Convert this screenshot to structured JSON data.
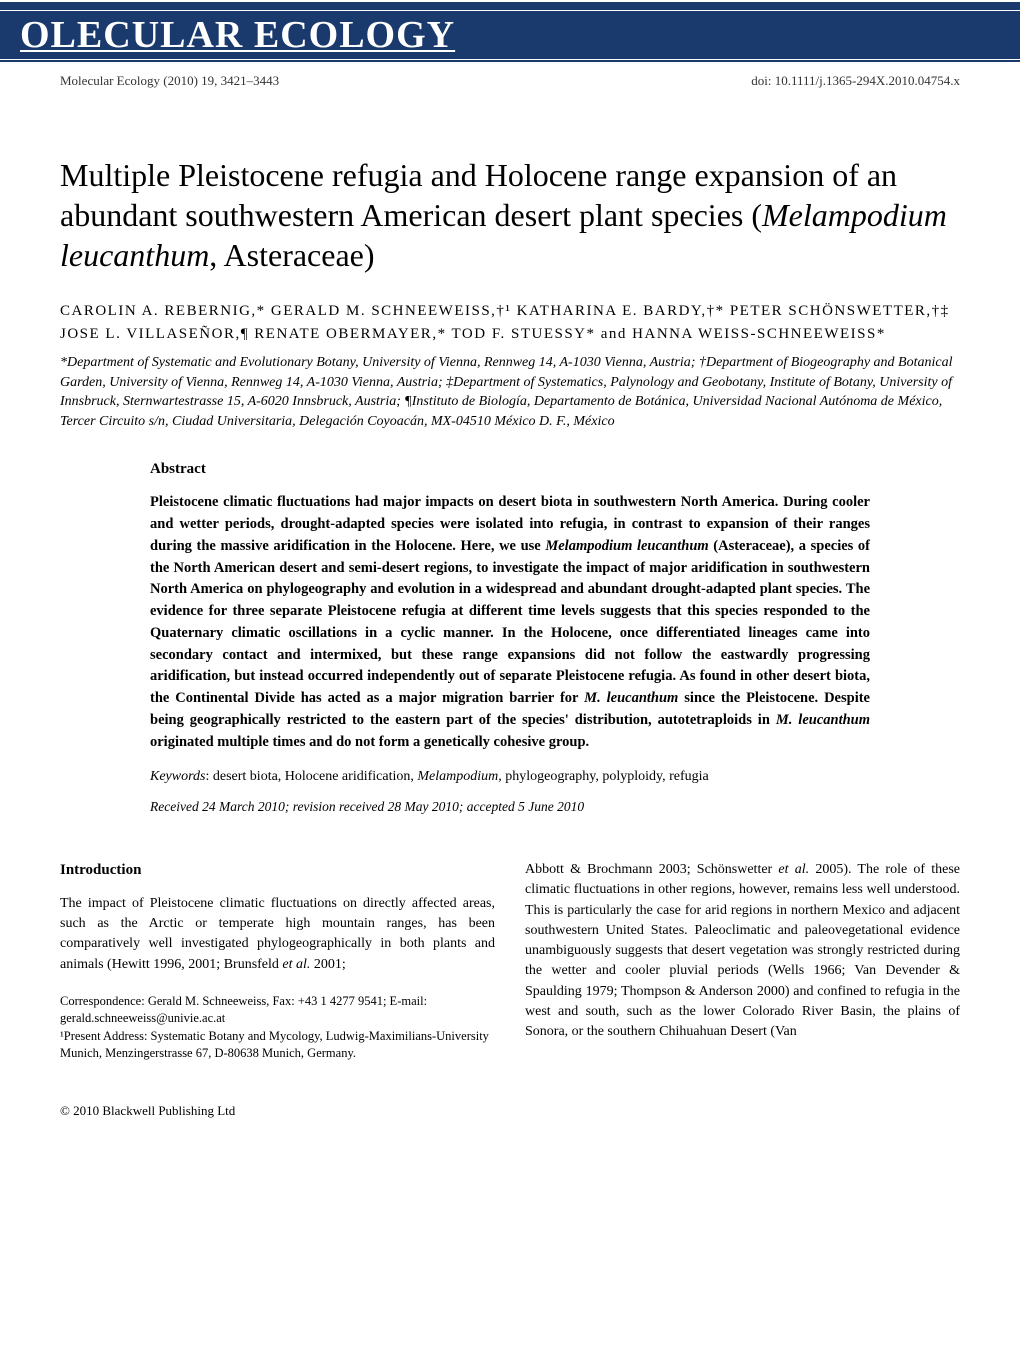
{
  "journal": {
    "banner_name": "OLECULAR ECOLOGY",
    "citation": "Molecular Ecology (2010) 19, 3421–3443",
    "doi": "doi: 10.1111/j.1365-294X.2010.04754.x"
  },
  "article": {
    "title_pre": "Multiple Pleistocene refugia and Holocene range expansion of an abundant southwestern American desert plant species (",
    "title_italic": "Melampodium leucanthum",
    "title_post": ", Asteraceae)",
    "authors": "CAROLIN A. REBERNIG,* GERALD M. SCHNEEWEISS,†¹ KATHARINA E. BARDY,†* PETER SCHÖNSWETTER,†‡ JOSE L. VILLASEÑOR,¶ RENATE OBERMAYER,* TOD F. STUESSY* and HANNA WEISS-SCHNEEWEISS*",
    "affiliations": "*Department of Systematic and Evolutionary Botany, University of Vienna, Rennweg 14, A-1030 Vienna, Austria; †Department of Biogeography and Botanical Garden, University of Vienna, Rennweg 14, A-1030 Vienna, Austria; ‡Department of Systematics, Palynology and Geobotany, Institute of Botany, University of Innsbruck, Sternwartestrasse 15, A-6020 Innsbruck, Austria; ¶Instituto de Biología, Departamento de Botánica, Universidad Nacional Autónoma de México, Tercer Circuito s/n, Ciudad Universitaria, Delegación Coyoacán, MX-04510 México D. F., México"
  },
  "abstract": {
    "heading": "Abstract",
    "body_1": "Pleistocene climatic fluctuations had major impacts on desert biota in southwestern North America. During cooler and wetter periods, drought-adapted species were isolated into refugia, in contrast to expansion of their ranges during the massive aridification in the Holocene. Here, we use ",
    "body_1_italic": "Melampodium leucanthum",
    "body_2": " (Asteraceae), a species of the North American desert and semi-desert regions, to investigate the impact of major aridification in southwestern North America on phylogeography and evolution in a widespread and abundant drought-adapted plant species. The evidence for three separate Pleistocene refugia at different time levels suggests that this species responded to the Quaternary climatic oscillations in a cyclic manner. In the Holocene, once differentiated lineages came into secondary contact and intermixed, but these range expansions did not follow the eastwardly progressing aridification, but instead occurred independently out of separate Pleistocene refugia. As found in other desert biota, the Continental Divide has acted as a major migration barrier for ",
    "body_2_italic": "M. leucanthum",
    "body_3": " since the Pleistocene. Despite being geographically restricted to the eastern part of the species' distribution, autotetraploids in ",
    "body_3_italic": "M. leucanthum",
    "body_4": " originated multiple times and do not form a genetically cohesive group.",
    "keywords_label": "Keywords",
    "keywords_text_1": ": desert biota, Holocene aridification, ",
    "keywords_italic": "Melampodium,",
    "keywords_text_2": " phylogeography, polyploidy, refugia",
    "received": "Received 24 March 2010; revision received 28 May 2010; accepted 5 June 2010"
  },
  "introduction": {
    "heading": "Introduction",
    "col1_text_1": "The impact of Pleistocene climatic fluctuations on directly affected areas, such as the Arctic or temperate high mountain ranges, has been comparatively well investigated phylogeographically in both plants and animals (Hewitt 1996, 2001; Brunsfeld ",
    "col1_italic_1": "et al.",
    "col1_text_2": " 2001;",
    "correspondence": "Correspondence: Gerald M. Schneeweiss, Fax: +43 1 4277 9541; E-mail: gerald.schneeweiss@univie.ac.at",
    "footnote": "¹Present Address: Systematic Botany and Mycology, Ludwig-Maximilians-University Munich, Menzingerstrasse 67, D-80638 Munich, Germany.",
    "col2_text_1": "Abbott & Brochmann 2003; Schönswetter ",
    "col2_italic_1": "et al.",
    "col2_text_2": " 2005). The role of these climatic fluctuations in other regions, however, remains less well understood. This is particularly the case for arid regions in northern Mexico and adjacent southwestern United States. Paleoclimatic and paleovegetational evidence unambiguously suggests that desert vegetation was strongly restricted during the wetter and cooler pluvial periods (Wells 1966; Van Devender & Spaulding 1979; Thompson & Anderson 2000) and confined to refugia in the west and south, such as the lower Colorado River Basin, the plains of Sonora, or the southern Chihuahuan Desert (Van"
  },
  "footer": {
    "copyright": "© 2010 Blackwell Publishing Ltd"
  }
}
